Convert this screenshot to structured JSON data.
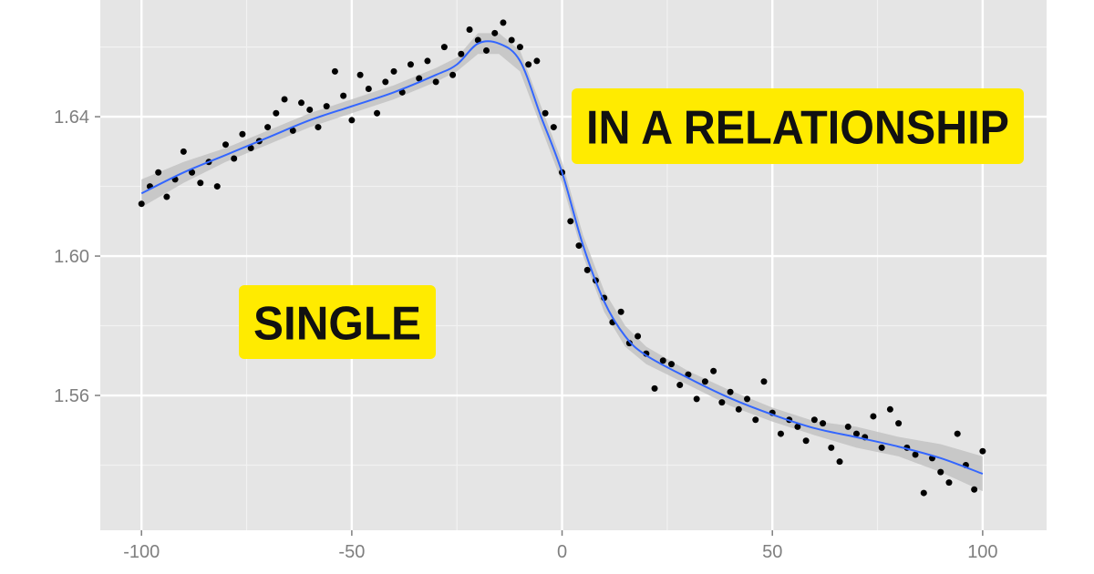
{
  "chart_data": {
    "type": "scatter",
    "xlim": [
      -109.8,
      115.2
    ],
    "ylim": [
      1.5213,
      1.6735
    ],
    "xticks": [
      -100,
      -50,
      0,
      50,
      100
    ],
    "yticks": [
      1.56,
      {
        "value": 1.6,
        "label": "1.60"
      },
      1.64
    ],
    "grid": true,
    "minor_grid": true,
    "panel_color": "#e5e5e5",
    "points": {
      "color": "#000000",
      "x": [
        -100,
        -98,
        -96,
        -94,
        -92,
        -90,
        -88,
        -86,
        -84,
        -82,
        -80,
        -78,
        -76,
        -74,
        -72,
        -70,
        -68,
        -66,
        -64,
        -62,
        -60,
        -58,
        -56,
        -54,
        -52,
        -50,
        -48,
        -46,
        -44,
        -42,
        -40,
        -38,
        -36,
        -34,
        -32,
        -30,
        -28,
        -26,
        -24,
        -22,
        -20,
        -18,
        -16,
        -14,
        -12,
        -10,
        -8,
        -6,
        -4,
        -2,
        0,
        2,
        4,
        6,
        8,
        10,
        12,
        14,
        16,
        18,
        20,
        22,
        24,
        26,
        28,
        30,
        32,
        34,
        36,
        38,
        40,
        42,
        44,
        46,
        48,
        50,
        52,
        54,
        56,
        58,
        60,
        62,
        64,
        66,
        68,
        70,
        72,
        74,
        76,
        78,
        80,
        82,
        84,
        86,
        88,
        90,
        92,
        94,
        96,
        98,
        100
      ],
      "y": [
        1.615,
        1.62,
        1.624,
        1.617,
        1.622,
        1.63,
        1.624,
        1.621,
        1.627,
        1.62,
        1.632,
        1.628,
        1.635,
        1.631,
        1.633,
        1.637,
        1.641,
        1.645,
        1.636,
        1.644,
        1.642,
        1.637,
        1.643,
        1.653,
        1.646,
        1.639,
        1.652,
        1.648,
        1.641,
        1.65,
        1.653,
        1.647,
        1.655,
        1.651,
        1.656,
        1.65,
        1.66,
        1.652,
        1.658,
        1.665,
        1.662,
        1.659,
        1.664,
        1.667,
        1.662,
        1.66,
        1.655,
        1.656,
        1.641,
        1.637,
        1.624,
        1.61,
        1.603,
        1.596,
        1.593,
        1.588,
        1.581,
        1.584,
        1.575,
        1.577,
        1.572,
        1.562,
        1.57,
        1.569,
        1.563,
        1.566,
        1.559,
        1.564,
        1.567,
        1.558,
        1.561,
        1.556,
        1.559,
        1.553,
        1.564,
        1.555,
        1.549,
        1.553,
        1.551,
        1.547,
        1.553,
        1.552,
        1.545,
        1.541,
        1.551,
        1.549,
        1.548,
        1.554,
        1.545,
        1.556,
        1.552,
        1.545,
        1.543,
        1.532,
        1.542,
        1.538,
        1.535,
        1.549,
        1.54,
        1.533,
        1.544
      ]
    },
    "smooth": {
      "color": "#3366ff",
      "band_color": "#bdbdbd",
      "x": [
        -100,
        -90,
        -80,
        -70,
        -60,
        -50,
        -40,
        -30,
        -25,
        -20,
        -15,
        -10,
        -5,
        0,
        5,
        10,
        15,
        20,
        30,
        40,
        50,
        60,
        70,
        80,
        90,
        100
      ],
      "y": [
        1.618,
        1.624,
        1.629,
        1.634,
        1.639,
        1.643,
        1.647,
        1.652,
        1.655,
        1.661,
        1.661,
        1.656,
        1.64,
        1.624,
        1.603,
        1.587,
        1.577,
        1.5715,
        1.565,
        1.5592,
        1.5545,
        1.5506,
        1.548,
        1.5453,
        1.542,
        1.5375
      ],
      "lower": [
        1.614,
        1.621,
        1.627,
        1.632,
        1.637,
        1.641,
        1.645,
        1.65,
        1.653,
        1.658,
        1.658,
        1.653,
        1.637,
        1.621,
        1.6,
        1.584,
        1.574,
        1.569,
        1.563,
        1.557,
        1.5525,
        1.5486,
        1.545,
        1.5425,
        1.538,
        1.5325
      ],
      "upper": [
        1.622,
        1.627,
        1.631,
        1.636,
        1.641,
        1.645,
        1.649,
        1.654,
        1.657,
        1.664,
        1.664,
        1.659,
        1.643,
        1.627,
        1.606,
        1.59,
        1.58,
        1.574,
        1.567,
        1.5614,
        1.5565,
        1.5526,
        1.551,
        1.5481,
        1.546,
        1.5425
      ]
    },
    "annotations": [
      {
        "text": "IN A RELATIONSHIP",
        "color": "#ffeb00"
      },
      {
        "text": "SINGLE",
        "color": "#ffeb00"
      }
    ]
  }
}
